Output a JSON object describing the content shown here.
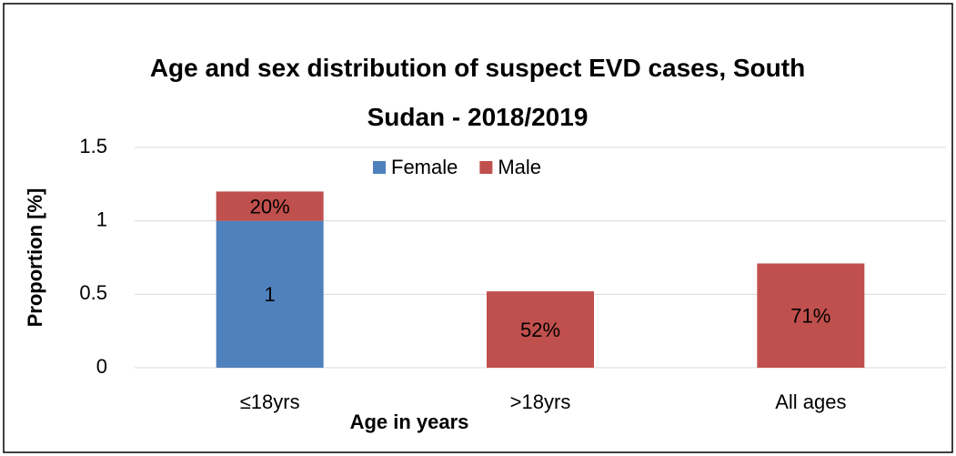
{
  "chart_data": {
    "type": "stacked_bar",
    "title": "Age and sex distribution of suspect EVD cases, South Sudan - 2018/2019",
    "x_label": "Age in years",
    "y_label": "Proportion [%]",
    "categories": [
      "≤18yrs",
      ">18yrs",
      "All ages"
    ],
    "series": [
      {
        "name": "Female",
        "color": "#4f81bd",
        "values": [
          1,
          null,
          null
        ]
      },
      {
        "name": "Male",
        "color": "#c0504d",
        "values": [
          0.2,
          0.52,
          0.71
        ],
        "value_labels": [
          "20%",
          "52%",
          "71%"
        ]
      }
    ],
    "ylim": [
      0,
      1.5
    ],
    "yticks": [
      0,
      0.5,
      1,
      1.5
    ],
    "grid": true,
    "legend": "top"
  }
}
